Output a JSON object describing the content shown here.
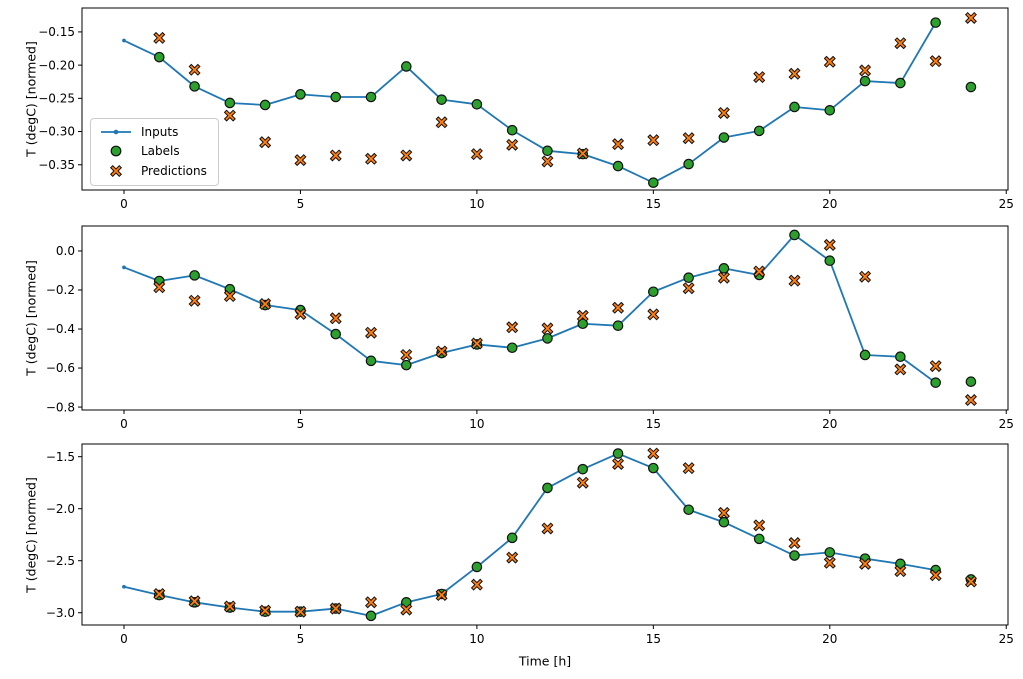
{
  "figure": {
    "xlabel": "Time [h]",
    "ylabel": "T (degC) [normed]",
    "colors": {
      "inputs": "#1f77b4",
      "labels": "#2ca02c",
      "predictions": "#ff7f0e",
      "marker_edge": "#111111",
      "axis": "#000000",
      "legend_border": "#cccccc"
    },
    "legend": {
      "items": [
        {
          "label": "Inputs"
        },
        {
          "label": "Labels"
        },
        {
          "label": "Predictions"
        }
      ]
    }
  },
  "chart_data": [
    {
      "type": "line",
      "title": "",
      "ylabel": "T (degC) [normed]",
      "xlim": [
        -1.19,
        25.05
      ],
      "ylim": [
        -0.388,
        -0.114
      ],
      "xticks": [
        0,
        5,
        10,
        15,
        20,
        25
      ],
      "xtick_labels": [
        "0",
        "5",
        "10",
        "15",
        "20",
        "25"
      ],
      "yticks": [
        -0.15,
        -0.2,
        -0.25,
        -0.3,
        -0.35
      ],
      "ytick_labels": [
        "−0.15",
        "−0.20",
        "−0.25",
        "−0.30",
        "−0.35"
      ],
      "grid": false,
      "legend_position": "lower-left-inside",
      "series": [
        {
          "name": "Inputs",
          "kind": "line-with-dots",
          "x": [
            0,
            1,
            2,
            3,
            4,
            5,
            6,
            7,
            8,
            9,
            10,
            11,
            12,
            13,
            14,
            15,
            16,
            17,
            18,
            19,
            20,
            21,
            22,
            23
          ],
          "y": [
            -0.163,
            -0.188,
            -0.232,
            -0.257,
            -0.26,
            -0.244,
            -0.248,
            -0.248,
            -0.202,
            -0.252,
            -0.259,
            -0.298,
            -0.329,
            -0.334,
            -0.352,
            -0.377,
            -0.349,
            -0.309,
            -0.299,
            -0.263,
            -0.268,
            -0.224,
            -0.227,
            -0.136
          ]
        },
        {
          "name": "Labels",
          "kind": "scatter-circle",
          "x": [
            1,
            2,
            3,
            4,
            5,
            6,
            7,
            8,
            9,
            10,
            11,
            12,
            13,
            14,
            15,
            16,
            17,
            18,
            19,
            20,
            21,
            22,
            23,
            24
          ],
          "y": [
            -0.188,
            -0.232,
            -0.257,
            -0.26,
            -0.244,
            -0.248,
            -0.248,
            -0.202,
            -0.252,
            -0.259,
            -0.298,
            -0.329,
            -0.334,
            -0.352,
            -0.377,
            -0.349,
            -0.309,
            -0.299,
            -0.263,
            -0.268,
            -0.224,
            -0.227,
            -0.136,
            -0.233
          ]
        },
        {
          "name": "Predictions",
          "kind": "scatter-X",
          "x": [
            1,
            2,
            3,
            4,
            5,
            6,
            7,
            8,
            9,
            10,
            11,
            12,
            13,
            14,
            15,
            16,
            17,
            18,
            19,
            20,
            21,
            22,
            23,
            24
          ],
          "y": [
            -0.159,
            -0.207,
            -0.276,
            -0.316,
            -0.343,
            -0.336,
            -0.341,
            -0.336,
            -0.286,
            -0.334,
            -0.32,
            -0.345,
            -0.333,
            -0.319,
            -0.313,
            -0.31,
            -0.272,
            -0.218,
            -0.213,
            -0.195,
            -0.208,
            -0.167,
            -0.194,
            -0.129
          ]
        }
      ]
    },
    {
      "type": "line",
      "title": "",
      "ylabel": "T (degC) [normed]",
      "xlim": [
        -1.19,
        25.05
      ],
      "ylim": [
        -0.815,
        0.128
      ],
      "xticks": [
        0,
        5,
        10,
        15,
        20,
        25
      ],
      "xtick_labels": [
        "0",
        "5",
        "10",
        "15",
        "20",
        "25"
      ],
      "yticks": [
        0.0,
        -0.2,
        -0.4,
        -0.6,
        -0.8
      ],
      "ytick_labels": [
        "0.0",
        "−0.2",
        "−0.4",
        "−0.6",
        "−0.8"
      ],
      "grid": false,
      "series": [
        {
          "name": "Inputs",
          "kind": "line-with-dots",
          "x": [
            0,
            1,
            2,
            3,
            4,
            5,
            6,
            7,
            8,
            9,
            10,
            11,
            12,
            13,
            14,
            15,
            16,
            17,
            18,
            19,
            20,
            21,
            22,
            23
          ],
          "y": [
            -0.084,
            -0.154,
            -0.125,
            -0.196,
            -0.277,
            -0.303,
            -0.426,
            -0.563,
            -0.585,
            -0.523,
            -0.479,
            -0.496,
            -0.448,
            -0.373,
            -0.383,
            -0.209,
            -0.137,
            -0.089,
            -0.123,
            0.082,
            -0.05,
            -0.533,
            -0.542,
            -0.675
          ]
        },
        {
          "name": "Labels",
          "kind": "scatter-circle",
          "x": [
            1,
            2,
            3,
            4,
            5,
            6,
            7,
            8,
            9,
            10,
            11,
            12,
            13,
            14,
            15,
            16,
            17,
            18,
            19,
            20,
            21,
            22,
            23,
            24
          ],
          "y": [
            -0.154,
            -0.125,
            -0.196,
            -0.277,
            -0.303,
            -0.426,
            -0.563,
            -0.585,
            -0.523,
            -0.479,
            -0.496,
            -0.448,
            -0.373,
            -0.383,
            -0.209,
            -0.137,
            -0.089,
            -0.123,
            0.082,
            -0.05,
            -0.533,
            -0.542,
            -0.675,
            -0.67
          ]
        },
        {
          "name": "Predictions",
          "kind": "scatter-X",
          "x": [
            1,
            2,
            3,
            4,
            5,
            6,
            7,
            8,
            9,
            10,
            11,
            12,
            13,
            14,
            15,
            16,
            17,
            18,
            19,
            20,
            21,
            22,
            23,
            24
          ],
          "y": [
            -0.186,
            -0.255,
            -0.231,
            -0.272,
            -0.323,
            -0.345,
            -0.419,
            -0.533,
            -0.515,
            -0.474,
            -0.391,
            -0.397,
            -0.332,
            -0.291,
            -0.325,
            -0.191,
            -0.137,
            -0.105,
            -0.152,
            0.031,
            -0.132,
            -0.607,
            -0.59,
            -0.764
          ]
        }
      ]
    },
    {
      "type": "line",
      "title": "",
      "ylabel": "T (degC) [normed]",
      "xlabel": "Time [h]",
      "xlim": [
        -1.19,
        25.05
      ],
      "ylim": [
        -3.118,
        -1.378
      ],
      "xticks": [
        0,
        5,
        10,
        15,
        20,
        25
      ],
      "xtick_labels": [
        "0",
        "5",
        "10",
        "15",
        "20",
        "25"
      ],
      "yticks": [
        -1.5,
        -2.0,
        -2.5,
        -3.0
      ],
      "ytick_labels": [
        "−1.5",
        "−2.0",
        "−2.5",
        "−3.0"
      ],
      "grid": false,
      "series": [
        {
          "name": "Inputs",
          "kind": "line-with-dots",
          "x": [
            0,
            1,
            2,
            3,
            4,
            5,
            6,
            7,
            8,
            9,
            10,
            11,
            12,
            13,
            14,
            15,
            16,
            17,
            18,
            19,
            20,
            21,
            22,
            23
          ],
          "y": [
            -2.75,
            -2.83,
            -2.9,
            -2.95,
            -2.99,
            -2.99,
            -2.96,
            -3.03,
            -2.9,
            -2.82,
            -2.56,
            -2.28,
            -1.8,
            -1.62,
            -1.47,
            -1.61,
            -2.01,
            -2.13,
            -2.29,
            -2.45,
            -2.42,
            -2.48,
            -2.53,
            -2.59
          ]
        },
        {
          "name": "Labels",
          "kind": "scatter-circle",
          "x": [
            1,
            2,
            3,
            4,
            5,
            6,
            7,
            8,
            9,
            10,
            11,
            12,
            13,
            14,
            15,
            16,
            17,
            18,
            19,
            20,
            21,
            22,
            23,
            24
          ],
          "y": [
            -2.83,
            -2.9,
            -2.95,
            -2.99,
            -2.99,
            -2.96,
            -3.03,
            -2.9,
            -2.82,
            -2.56,
            -2.28,
            -1.8,
            -1.62,
            -1.47,
            -1.61,
            -2.01,
            -2.13,
            -2.29,
            -2.45,
            -2.42,
            -2.48,
            -2.53,
            -2.59,
            -2.68
          ]
        },
        {
          "name": "Predictions",
          "kind": "scatter-X",
          "x": [
            1,
            2,
            3,
            4,
            5,
            6,
            7,
            8,
            9,
            10,
            11,
            12,
            13,
            14,
            15,
            16,
            17,
            18,
            19,
            20,
            21,
            22,
            23,
            24
          ],
          "y": [
            -2.82,
            -2.89,
            -2.94,
            -2.98,
            -2.99,
            -2.96,
            -2.9,
            -2.97,
            -2.83,
            -2.73,
            -2.47,
            -2.19,
            -1.75,
            -1.57,
            -1.47,
            -1.61,
            -2.04,
            -2.16,
            -2.33,
            -2.52,
            -2.53,
            -2.6,
            -2.64,
            -2.7
          ]
        }
      ]
    }
  ]
}
